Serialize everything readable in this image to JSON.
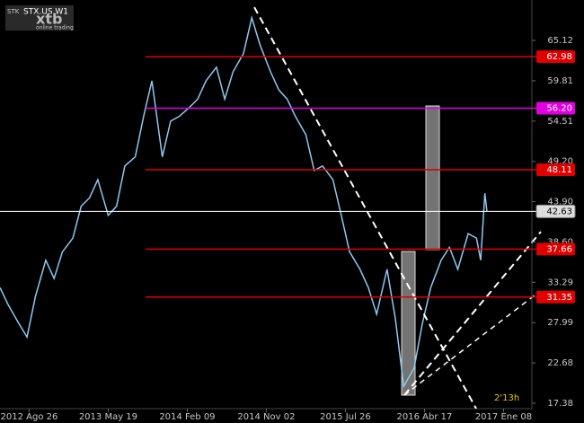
{
  "chart_data": {
    "type": "line",
    "title": "STX.US W1",
    "badge": "STK",
    "logo": "xtb",
    "logo_subtitle": "online trading",
    "timer": "2'13h",
    "color": "#8fc8f0",
    "x": [
      0,
      4,
      9,
      13,
      17,
      22,
      26,
      30,
      35,
      39,
      43,
      47,
      52,
      56,
      60,
      65,
      69,
      73,
      78,
      82,
      86,
      91,
      95,
      99,
      104,
      108,
      112,
      117,
      121,
      125,
      130,
      134,
      138,
      142,
      147,
      151,
      155,
      160,
      164,
      168,
      173,
      177,
      181,
      186,
      190,
      194,
      199,
      203,
      207,
      212,
      216,
      220,
      225,
      229,
      231,
      233,
      234
    ],
    "values": [
      32.6,
      30.3,
      27.9,
      26.1,
      31.4,
      36.2,
      33.8,
      37.3,
      39.1,
      43.3,
      44.4,
      46.8,
      42.1,
      43.3,
      48.6,
      49.8,
      55.1,
      59.8,
      49.8,
      54.5,
      55.1,
      56.3,
      57.4,
      59.8,
      61.6,
      57.4,
      61.0,
      63.4,
      68.1,
      64.5,
      61.0,
      58.6,
      57.4,
      55.1,
      52.7,
      48.0,
      48.6,
      46.8,
      42.1,
      37.3,
      35.0,
      32.6,
      29.1,
      35.0,
      28.5,
      19.6,
      22.0,
      27.9,
      32.6,
      36.2,
      37.9,
      35.0,
      39.7,
      39.1,
      36.2,
      45.0,
      42.6
    ],
    "xlim": [
      0,
      255
    ],
    "ylim": [
      16.67,
      70.44
    ],
    "xticks": [
      {
        "value": 14,
        "label": "2012 Ago 26"
      },
      {
        "value": 52,
        "label": "2013 May 19"
      },
      {
        "value": 90,
        "label": "2014 Feb 09"
      },
      {
        "value": 128,
        "label": "2014 Nov 02"
      },
      {
        "value": 166,
        "label": "2015 Jul 26"
      },
      {
        "value": 204,
        "label": "2016 Abr 17"
      },
      {
        "value": 242,
        "label": "2017 Ene 08"
      }
    ],
    "yticks": [
      65.12,
      59.81,
      54.51,
      {
        "value": 49.2,
        "label": "49.20"
      },
      {
        "value": 43.9,
        "label": "43.90"
      },
      {
        "value": 38.6,
        "label": "38.60"
      },
      33.29,
      27.99,
      22.68,
      17.38
    ],
    "levels": [
      {
        "value": 62.98,
        "color": "#e00000"
      },
      {
        "value": 56.2,
        "label": "56.20",
        "color": "#e000e0"
      },
      {
        "value": 48.11,
        "color": "#e00000"
      },
      {
        "value": 42.63,
        "color": "#ffffff"
      },
      {
        "value": 37.66,
        "color": "#e00000"
      },
      {
        "value": 31.35,
        "color": "#e00000"
      }
    ]
  }
}
